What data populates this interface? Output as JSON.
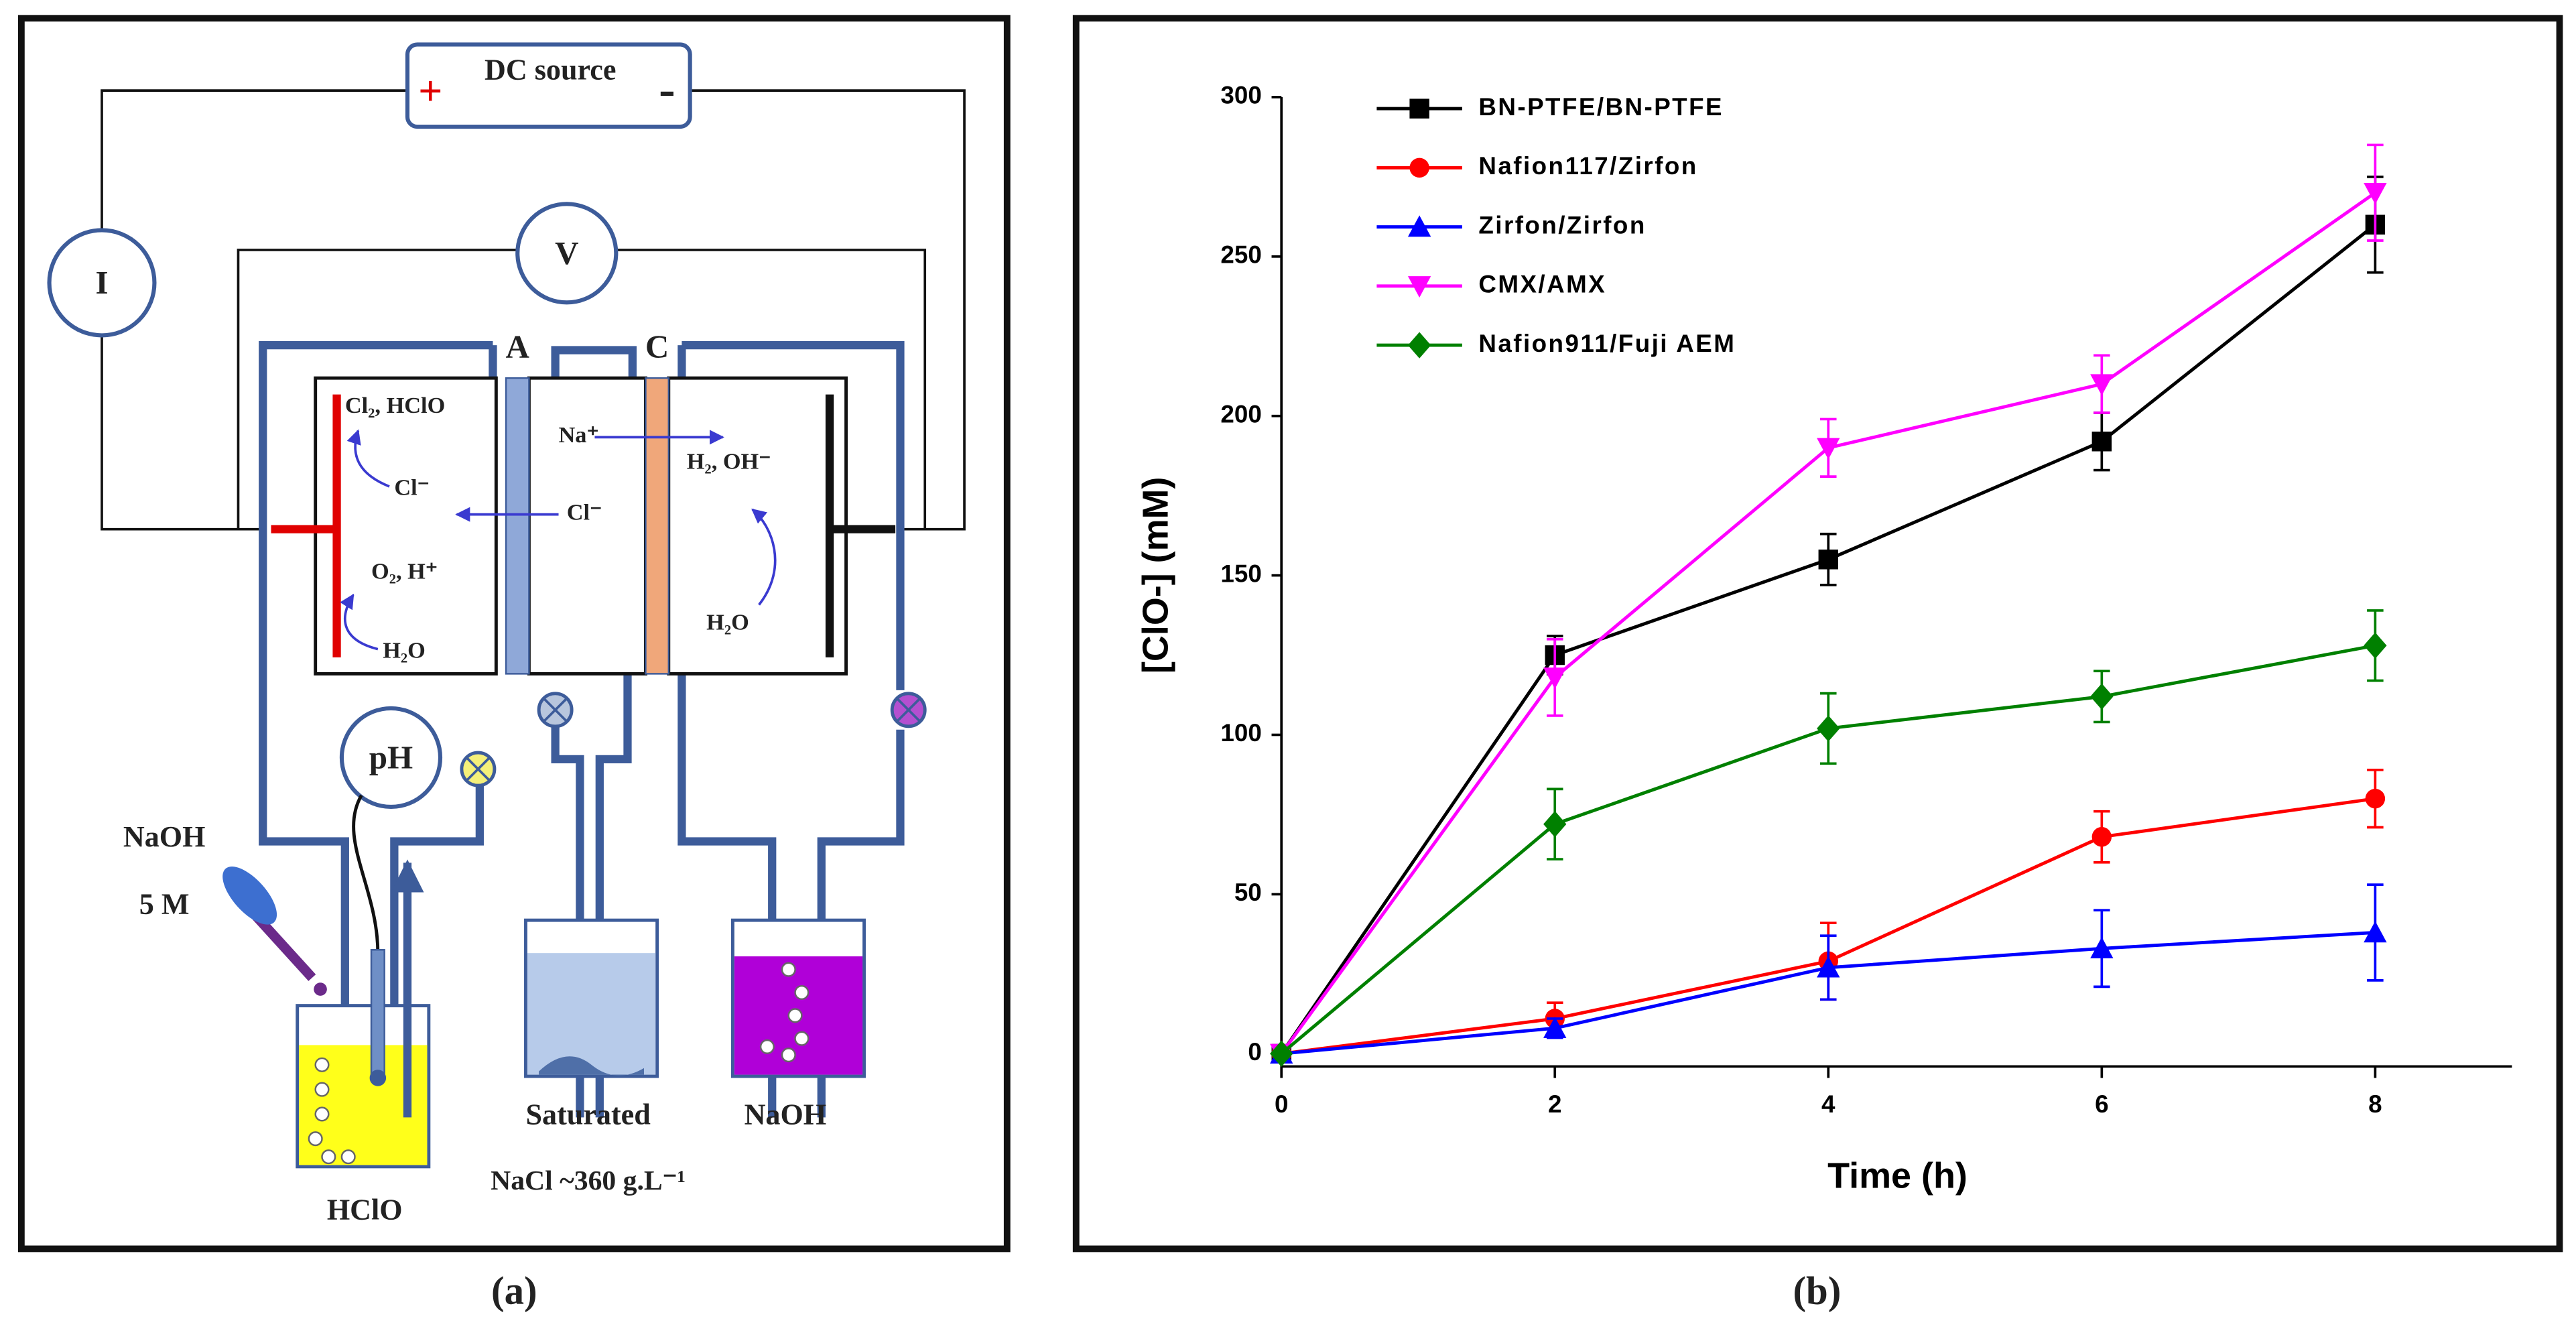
{
  "diagram": {
    "dc_source": "DC source",
    "plus": "+",
    "minus": "-",
    "ammeter": "I",
    "voltmeter": "V",
    "membrane_a": "A",
    "membrane_c": "C",
    "ph": "pH",
    "anode_top": "Cl₂, HClO",
    "anode_cl": "Cl⁻",
    "center_cl": "Cl⁻",
    "center_na": "Na⁺",
    "cathode_top": "H₂, OH⁻",
    "anode_bottom": "O₂, H⁺",
    "anode_water": "H₂O",
    "cathode_water": "H₂O",
    "naoh_drop": "NaOH",
    "naoh_conc": "5 M",
    "hclo": "HClO",
    "saturated": "Saturated",
    "nacl": "NaCl ~360 g.L⁻¹",
    "naoh_tank": "NaOH"
  },
  "captions": {
    "a": "(a)",
    "b": "(b)"
  },
  "chart_data": {
    "type": "line",
    "x_label": "Time (h)",
    "y_label": "[ClO-] (mM)",
    "x": [
      0,
      2,
      4,
      6,
      8
    ],
    "xlim": [
      0,
      9
    ],
    "xticks": [
      0,
      2,
      4,
      6,
      8
    ],
    "ylim": [
      -4,
      300
    ],
    "yticks": [
      0,
      50,
      100,
      150,
      200,
      250,
      300
    ],
    "legend": "top-left",
    "series": [
      {
        "name": "BN-PTFE/BN-PTFE",
        "color": "#000000",
        "marker": "square",
        "values": [
          0,
          125,
          155,
          192,
          260
        ],
        "errors": [
          0,
          6,
          8,
          9,
          15
        ]
      },
      {
        "name": "Nafion117/Zirfon",
        "color": "#ff0000",
        "marker": "circle",
        "values": [
          0,
          11,
          29,
          68,
          80
        ],
        "errors": [
          0,
          5,
          12,
          8,
          9
        ]
      },
      {
        "name": "Zirfon/Zirfon",
        "color": "#0000ff",
        "marker": "triangle-up",
        "values": [
          0,
          8,
          27,
          33,
          38
        ],
        "errors": [
          0,
          3,
          10,
          12,
          15
        ]
      },
      {
        "name": "CMX/AMX",
        "color": "#ff00ff",
        "marker": "triangle-down",
        "values": [
          0,
          118,
          190,
          210,
          270
        ],
        "errors": [
          0,
          12,
          9,
          9,
          15
        ]
      },
      {
        "name": "Nafion911/Fuji AEM",
        "color": "#008000",
        "marker": "diamond",
        "values": [
          0,
          72,
          102,
          112,
          128
        ],
        "errors": [
          0,
          11,
          11,
          8,
          11
        ]
      }
    ]
  }
}
